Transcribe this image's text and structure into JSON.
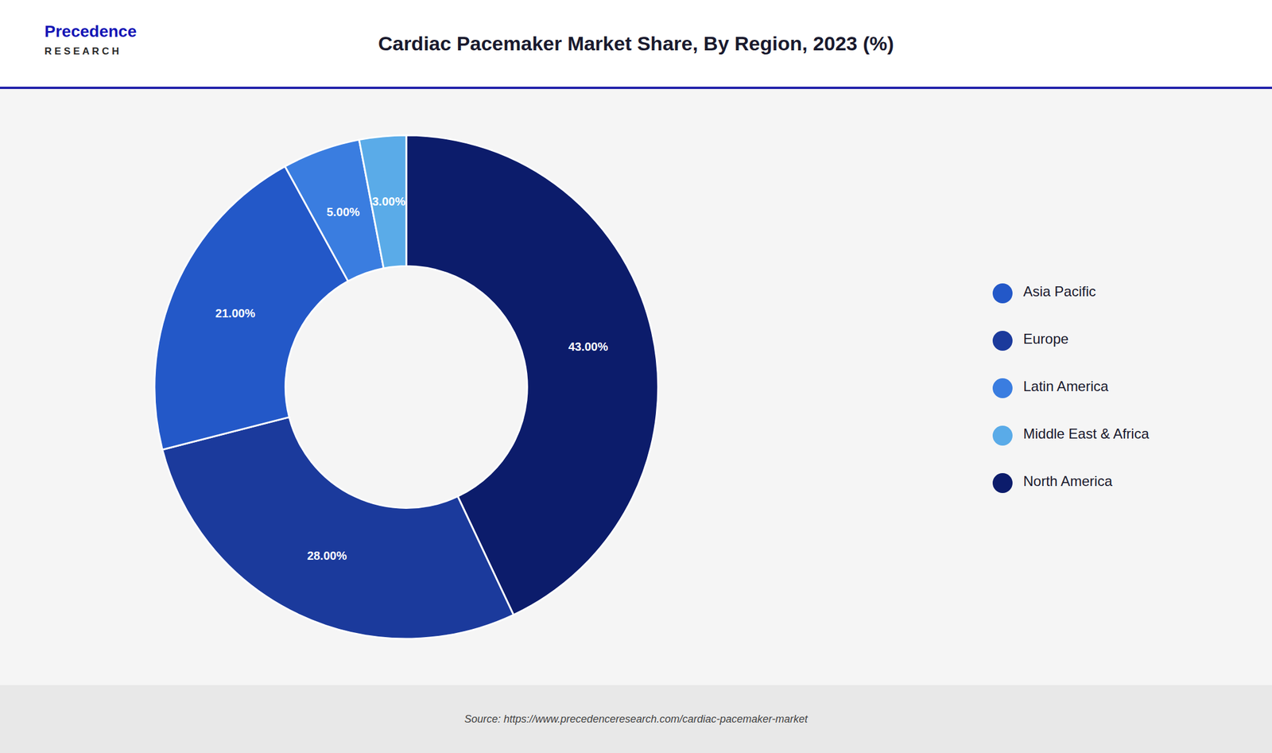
{
  "chart_data": {
    "type": "donut",
    "title": "Cardiac Pacemaker Market Share, By Region, 2023 (%)",
    "categories": [
      "North America",
      "Europe",
      "Asia Pacific",
      "Latin America",
      "Middle East & Africa"
    ],
    "values": [
      43.0,
      28.0,
      21.0,
      5.0,
      3.0
    ],
    "value_labels": [
      "43.00%",
      "28.00%",
      "21.00%",
      "5.00%",
      "3.00%"
    ],
    "colors": [
      "#0c1c6b",
      "#1b3a9c",
      "#2358c8",
      "#3a7de0",
      "#5aabe8"
    ],
    "data_labels": true,
    "legend": "right",
    "annotations": [
      "Precedence",
      "R E S E A R C H",
      "Source: https://www.precedenceresearch.com/cardiac-pacemaker-market"
    ]
  }
}
